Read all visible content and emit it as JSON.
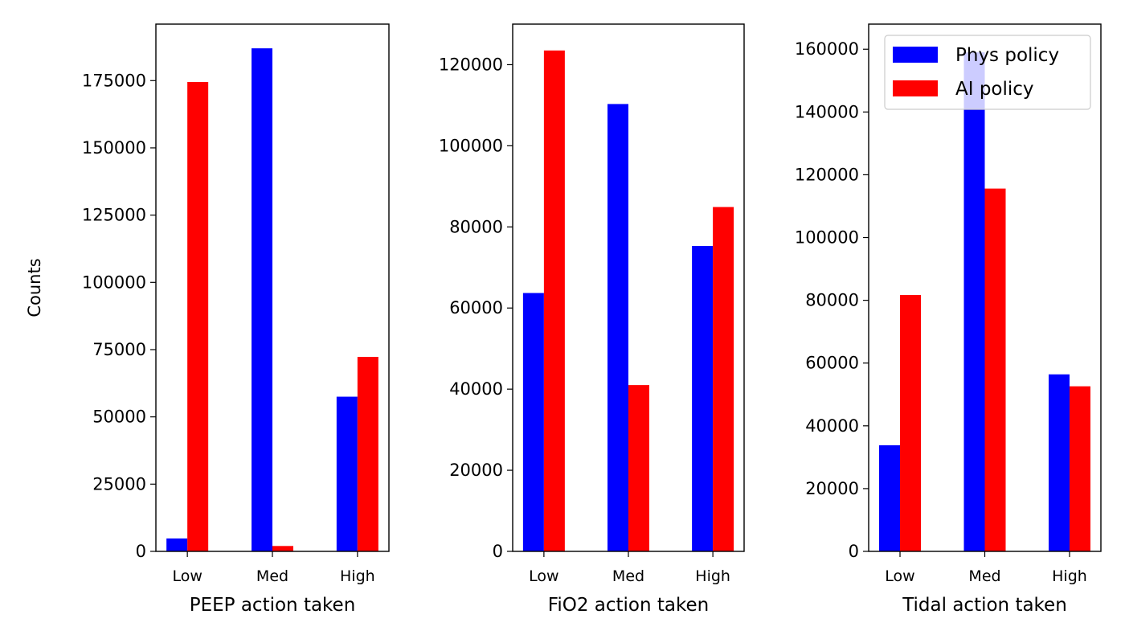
{
  "colors": {
    "phys": "#0000ff",
    "ai": "#ff0000"
  },
  "chart_data": [
    {
      "type": "bar",
      "categories": [
        "Low",
        "Med",
        "High"
      ],
      "series": [
        {
          "name": "Phys policy",
          "values": [
            4800,
            187000,
            57500
          ]
        },
        {
          "name": "AI policy",
          "values": [
            174500,
            2000,
            72300
          ]
        }
      ],
      "xlabel": "PEEP action taken",
      "ylabel": "Counts",
      "ylim": [
        0,
        196000
      ],
      "yticks": [
        0,
        25000,
        50000,
        75000,
        100000,
        125000,
        150000,
        175000
      ],
      "ytick_labels": [
        "0",
        "25000",
        "50000",
        "75000",
        "100000",
        "125000",
        "150000",
        "175000"
      ],
      "grid": false
    },
    {
      "type": "bar",
      "categories": [
        "Low",
        "Med",
        "High"
      ],
      "series": [
        {
          "name": "Phys policy",
          "values": [
            63700,
            110300,
            75300
          ]
        },
        {
          "name": "AI policy",
          "values": [
            123500,
            41000,
            84900
          ]
        }
      ],
      "xlabel": "FiO2 action taken",
      "ylabel": "",
      "ylim": [
        0,
        130000
      ],
      "yticks": [
        0,
        20000,
        40000,
        60000,
        80000,
        100000,
        120000
      ],
      "ytick_labels": [
        "0",
        "20000",
        "40000",
        "60000",
        "80000",
        "100000",
        "120000"
      ],
      "grid": false
    },
    {
      "type": "bar",
      "categories": [
        "Low",
        "Med",
        "High"
      ],
      "series": [
        {
          "name": "Phys policy",
          "values": [
            33800,
            159000,
            56400
          ]
        },
        {
          "name": "AI policy",
          "values": [
            81700,
            115600,
            52600
          ]
        }
      ],
      "xlabel": "Tidal action taken",
      "ylabel": "",
      "ylim": [
        0,
        168000
      ],
      "yticks": [
        0,
        20000,
        40000,
        60000,
        80000,
        100000,
        120000,
        140000,
        160000
      ],
      "ytick_labels": [
        "0",
        "20000",
        "40000",
        "60000",
        "80000",
        "100000",
        "120000",
        "140000",
        "160000"
      ],
      "grid": false,
      "legend": {
        "placement": "top-right",
        "entries": [
          "Phys policy",
          "AI policy"
        ]
      }
    }
  ]
}
